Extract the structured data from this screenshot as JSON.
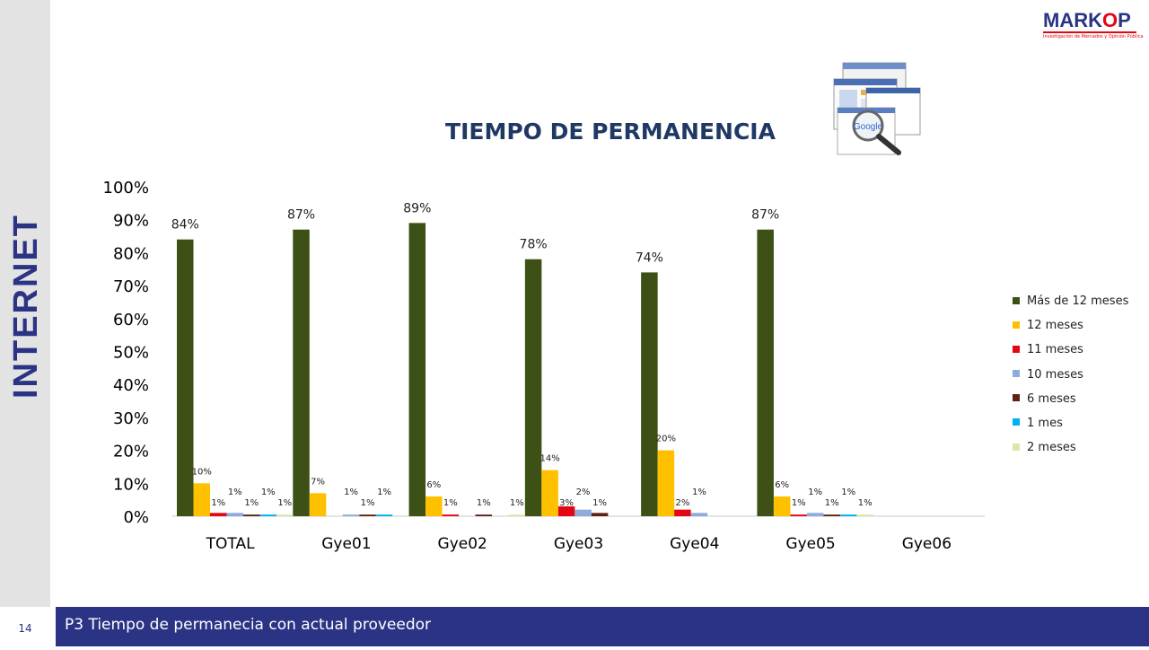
{
  "side_title": "INTERNET",
  "page_number": "14",
  "footer_text": "P3 Tiempo de permanecia con actual proveedor",
  "logo": {
    "word_a": "MARK",
    "word_o": "O",
    "word_b": "P",
    "tagline": "Investigación de Mercados y Opinión Pública"
  },
  "colors": {
    "band": "#e3e3e3",
    "footer": "#2b3484",
    "title": "#1f3864"
  },
  "chart_data": {
    "type": "bar",
    "title": "TIEMPO DE PERMANENCIA",
    "categories": [
      "TOTAL",
      "Gye01",
      "Gye02",
      "Gye03",
      "Gye04",
      "Gye05",
      "Gye06"
    ],
    "ylim": [
      0,
      100
    ],
    "yticks": [
      "0%",
      "10%",
      "20%",
      "30%",
      "40%",
      "50%",
      "60%",
      "70%",
      "80%",
      "90%",
      "100%"
    ],
    "legend_position": "right",
    "series": [
      {
        "name": "Más de 12 meses",
        "color": "#3d5015",
        "values": [
          84,
          87,
          89,
          78,
          74,
          87,
          null
        ],
        "labels": [
          "84%",
          "87%",
          "89%",
          "78%",
          "74%",
          "87%",
          ""
        ]
      },
      {
        "name": "12 meses",
        "color": "#ffc000",
        "values": [
          10,
          7,
          6,
          14,
          20,
          6,
          null
        ],
        "labels": [
          "10%",
          "7%",
          "6%",
          "14%",
          "20%",
          "6%",
          ""
        ]
      },
      {
        "name": "11 meses",
        "color": "#e30613",
        "values": [
          1,
          0,
          0.5,
          3,
          2,
          0.5,
          null
        ],
        "labels": [
          "1%",
          "",
          "1%",
          "3%",
          "2%",
          "1%",
          ""
        ]
      },
      {
        "name": "10 meses",
        "color": "#8faadc",
        "values": [
          1,
          0.5,
          0,
          2,
          1,
          1,
          null
        ],
        "labels": [
          "1%",
          "1%",
          "",
          "2%",
          "1%",
          "1%",
          ""
        ]
      },
      {
        "name": "6 meses",
        "color": "#5e2312",
        "values": [
          0.5,
          0.5,
          0.5,
          1,
          0,
          0.5,
          null
        ],
        "labels": [
          "1%",
          "1%",
          "1%",
          "1%",
          "",
          "1%",
          ""
        ]
      },
      {
        "name": "1 mes",
        "color": "#00b0f0",
        "values": [
          0.5,
          0.5,
          0,
          0,
          0,
          0.5,
          null
        ],
        "labels": [
          "1%",
          "1%",
          "",
          "",
          "",
          "1%",
          ""
        ]
      },
      {
        "name": "2 meses",
        "color": "#d8e8a8",
        "values": [
          0.5,
          0,
          0.5,
          0,
          0,
          0.5,
          null
        ],
        "labels": [
          "1%",
          "",
          "1%",
          "",
          "",
          "1%",
          ""
        ]
      }
    ]
  }
}
